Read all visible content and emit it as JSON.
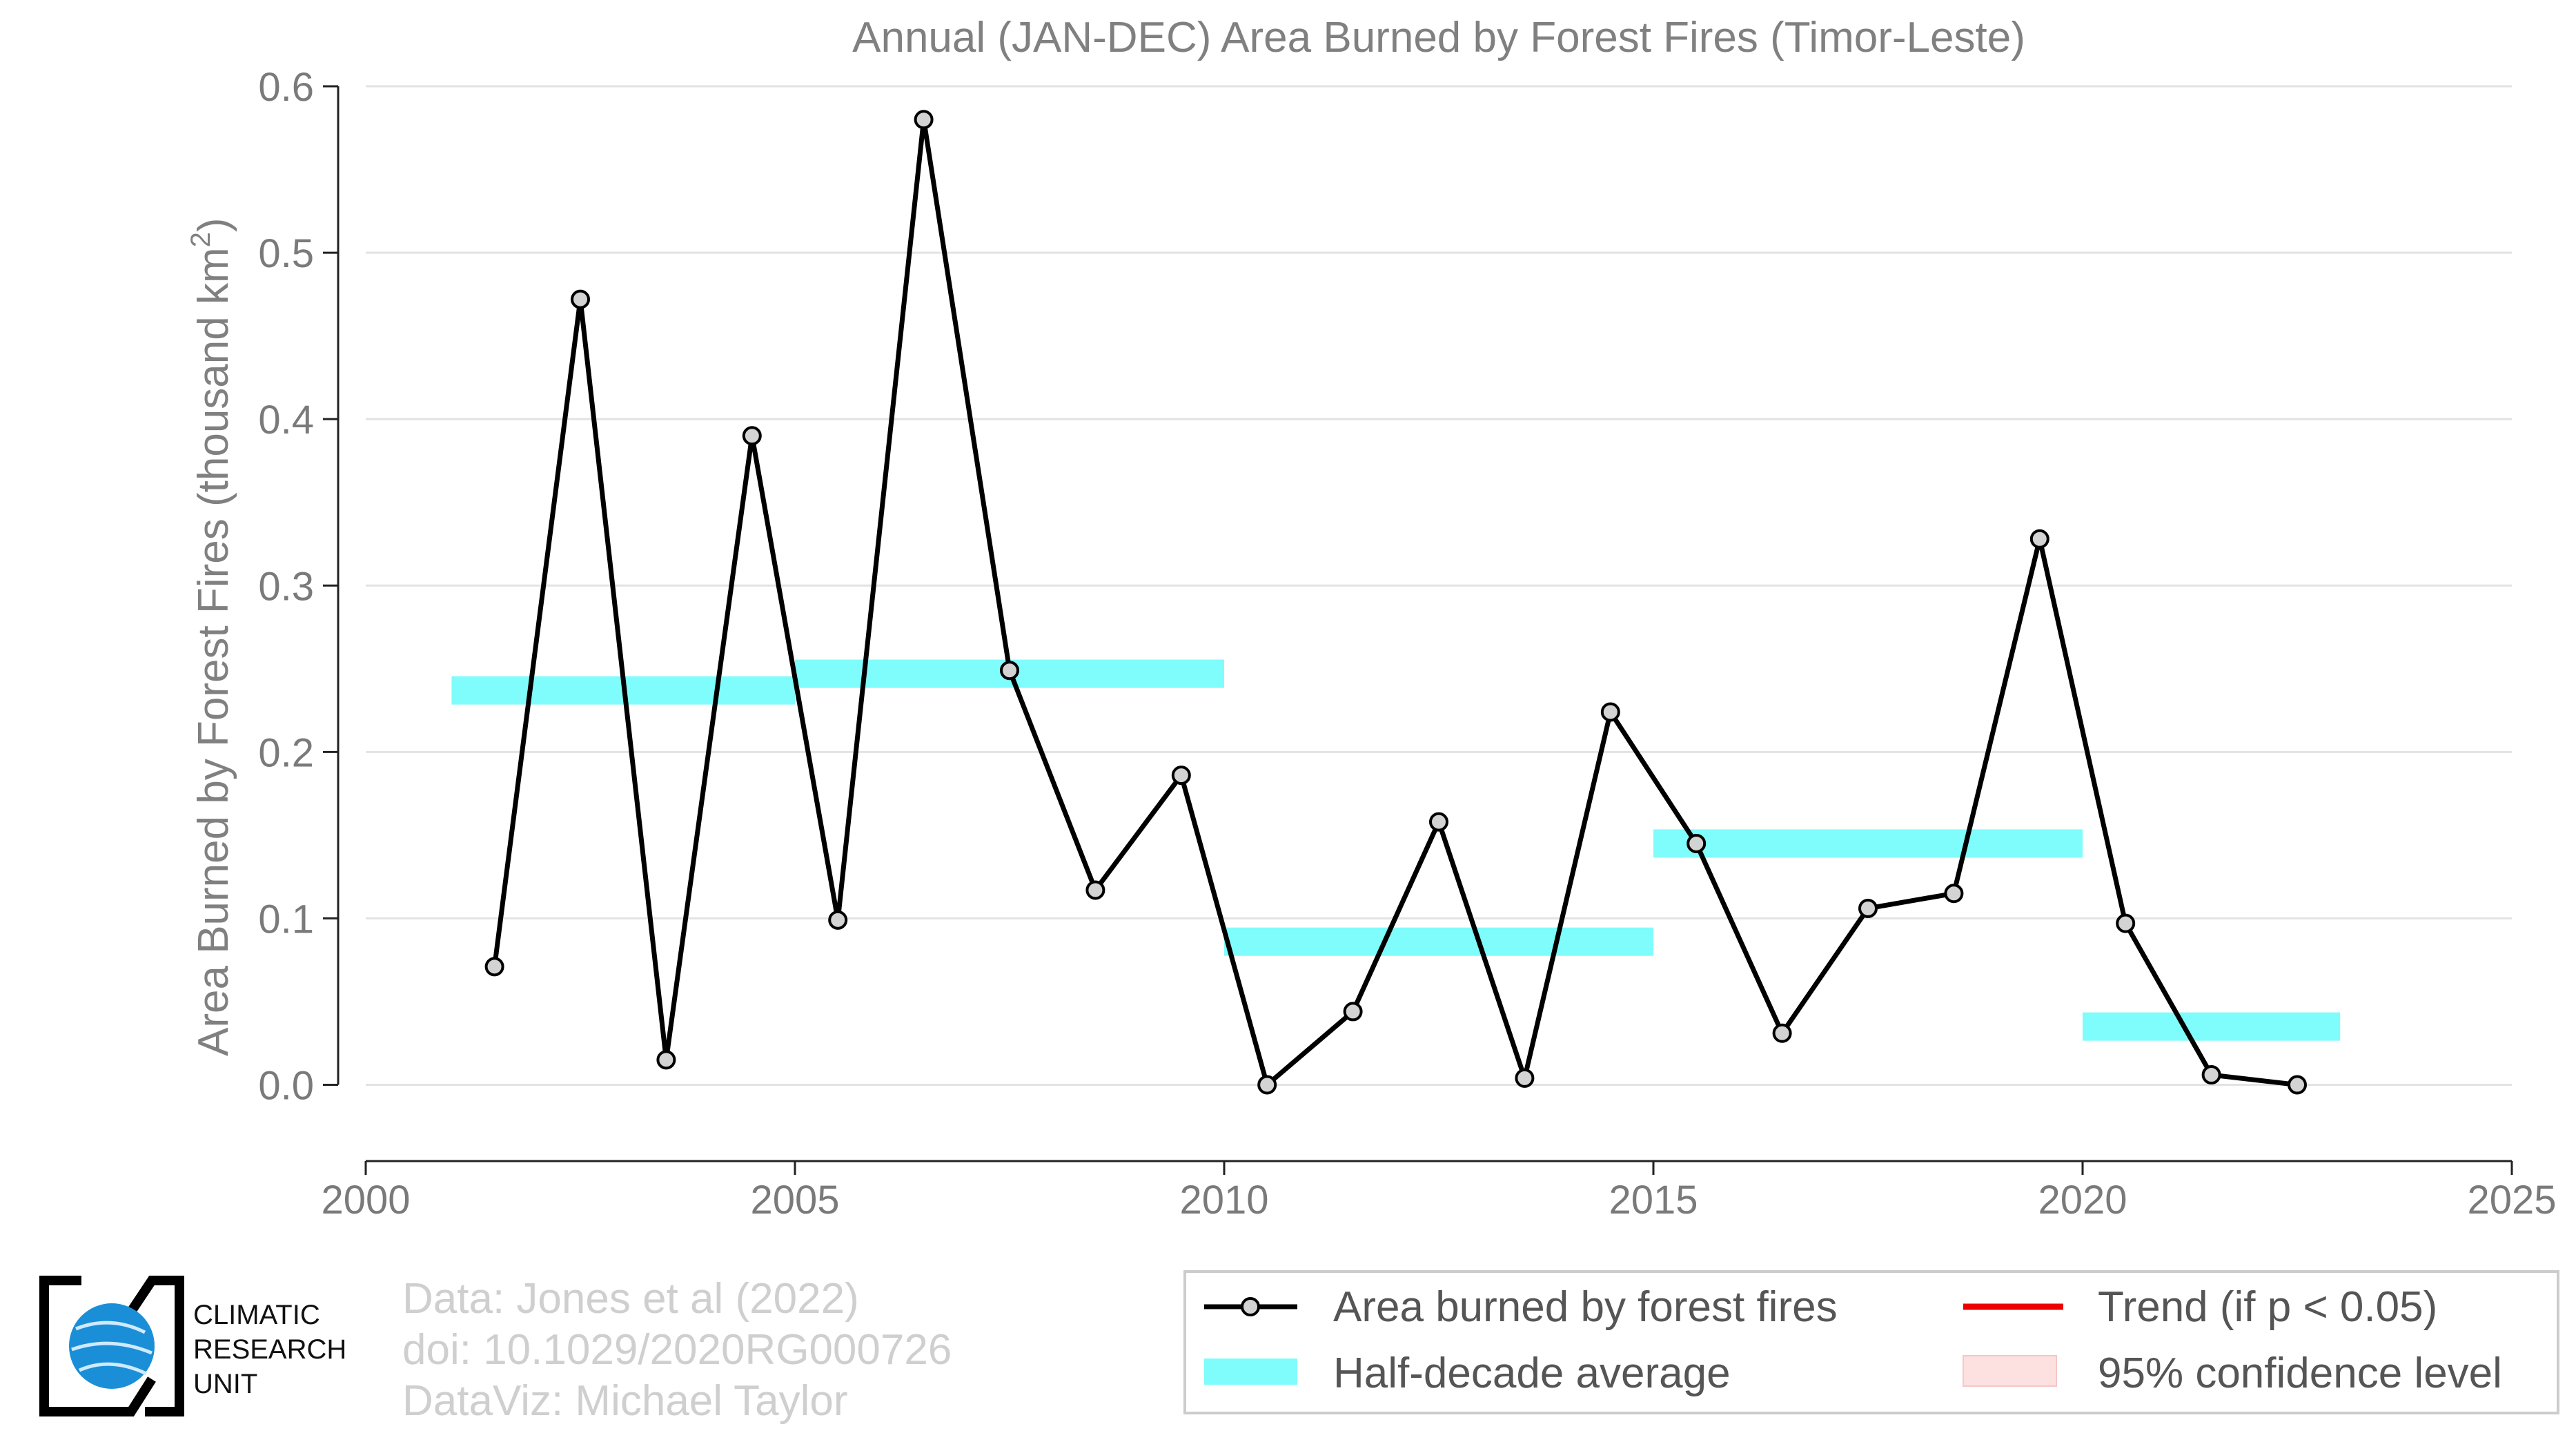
{
  "chart_data": {
    "type": "line",
    "title": "Annual (JAN-DEC) Area Burned by Forest Fires (Timor-Leste)",
    "ylabel_main": "Area Burned by Forest Fires (thousand km",
    "ylabel_sup": "2",
    "ylabel_end": ")",
    "xlim": [
      2000,
      2025
    ],
    "ylim": [
      -0.045,
      0.6
    ],
    "xticks": [
      2000,
      2005,
      2010,
      2015,
      2020,
      2025
    ],
    "xtick_labels": [
      "2000",
      "2005",
      "2010",
      "2015",
      "2020",
      "2025"
    ],
    "yticks": [
      0.0,
      0.1,
      0.2,
      0.3,
      0.4,
      0.5,
      0.6
    ],
    "ytick_labels": [
      "0.0",
      "0.1",
      "0.2",
      "0.3",
      "0.4",
      "0.5",
      "0.6"
    ],
    "grid": "horizontal",
    "series": [
      {
        "name": "Area burned by forest fires",
        "x": [
          2001.5,
          2002.5,
          2003.5,
          2004.5,
          2005.5,
          2006.5,
          2007.5,
          2008.5,
          2009.5,
          2010.5,
          2011.5,
          2012.5,
          2013.5,
          2014.5,
          2015.5,
          2016.5,
          2017.5,
          2018.5,
          2019.5,
          2020.5,
          2021.5,
          2022.5
        ],
        "y": [
          0.071,
          0.472,
          0.015,
          0.39,
          0.099,
          0.58,
          0.249,
          0.117,
          0.186,
          0.0,
          0.044,
          0.158,
          0.004,
          0.224,
          0.145,
          0.031,
          0.106,
          0.115,
          0.328,
          0.097,
          0.006,
          0.0
        ],
        "color": "#000000"
      }
    ],
    "half_decade_averages": [
      {
        "x_start": 2001,
        "x_end": 2005,
        "value": 0.237
      },
      {
        "x_start": 2005,
        "x_end": 2010,
        "value": 0.247
      },
      {
        "x_start": 2010,
        "x_end": 2015,
        "value": 0.086
      },
      {
        "x_start": 2015,
        "x_end": 2020,
        "value": 0.145
      },
      {
        "x_start": 2020,
        "x_end": 2023,
        "value": 0.035
      }
    ],
    "half_decade_color": "#7ffcfc",
    "legend": {
      "placement": "bottom-right",
      "entries": [
        {
          "label": "Area burned by forest fires",
          "kind": "line-marker"
        },
        {
          "label": "Trend (if p < 0.05)",
          "kind": "line",
          "color": "#ee0000"
        },
        {
          "label": "Half-decade average",
          "kind": "band",
          "color": "#7ffcfc"
        },
        {
          "label": "95% confidence level",
          "kind": "patch",
          "color": "#fde0e0"
        }
      ]
    }
  },
  "credits": {
    "data": "Data: Jones et al (2022)",
    "doi": "doi: 10.1029/2020RG000726",
    "dataviz": "DataViz: Michael Taylor"
  },
  "logo": {
    "line1": "CLIMATIC",
    "line2": "RESEARCH",
    "line3": "UNIT",
    "globe_color": "#1a8fd8"
  }
}
